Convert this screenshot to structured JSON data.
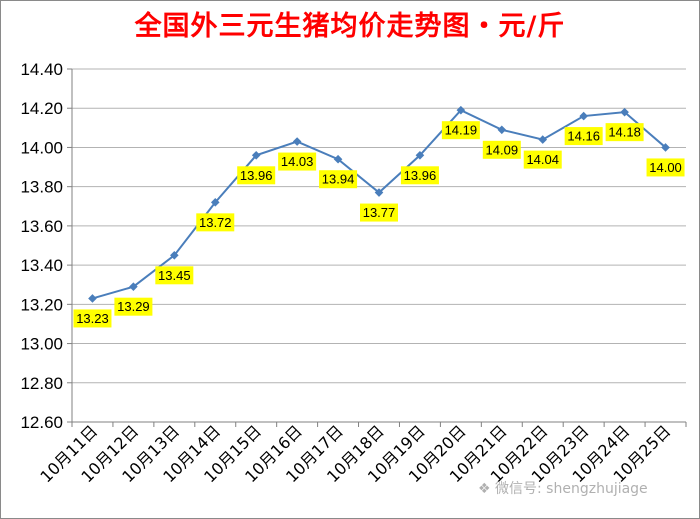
{
  "chart_data": {
    "type": "line",
    "title": "全国外三元生猪均价走势图・元/斤",
    "categories": [
      "10月11日",
      "10月12日",
      "10月13日",
      "10月14日",
      "10月15日",
      "10月16日",
      "10月17日",
      "10月18日",
      "10月19日",
      "10月20日",
      "10月21日",
      "10月22日",
      "10月23日",
      "10月24日",
      "10月25日"
    ],
    "values": [
      13.23,
      13.29,
      13.45,
      13.72,
      13.96,
      14.03,
      13.94,
      13.77,
      13.96,
      14.19,
      14.09,
      14.04,
      14.16,
      14.18,
      14.0
    ],
    "data_labels": [
      "13.23",
      "13.29",
      "13.45",
      "13.72",
      "13.96",
      "14.03",
      "13.94",
      "13.77",
      "13.96",
      "14.19",
      "14.09",
      "14.04",
      "14.16",
      "14.18",
      "14.00"
    ],
    "ylim": [
      12.6,
      14.4
    ],
    "yticks": [
      "12.60",
      "12.80",
      "13.00",
      "13.20",
      "13.40",
      "13.60",
      "13.80",
      "14.00",
      "14.20",
      "14.40"
    ],
    "grid": true,
    "legend": "none"
  },
  "colors": {
    "title": "#ff0000",
    "line": "#4a7ebb",
    "label_bg": "#ffff00",
    "grid": "#b3b3b3"
  },
  "watermark": "微信号: shengzhujiage"
}
